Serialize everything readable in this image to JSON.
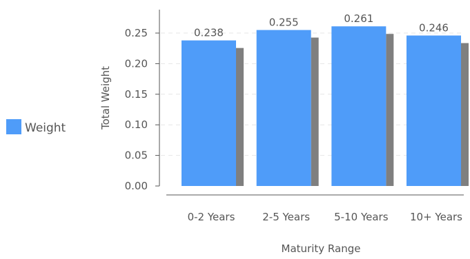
{
  "chart_data": {
    "type": "bar",
    "categories": [
      "0-2 Years",
      "2-5 Years",
      "5-10 Years",
      "10+ Years"
    ],
    "series": [
      {
        "name": "Weight",
        "values": [
          0.238,
          0.255,
          0.261,
          0.246
        ]
      }
    ],
    "data_labels": [
      "0.238",
      "0.255",
      "0.261",
      "0.246"
    ],
    "xlabel": "Maturity Range",
    "ylabel": "Total Weight",
    "ylim": [
      0,
      0.25
    ],
    "yticks": [
      "0.00",
      "0.05",
      "0.10",
      "0.15",
      "0.20",
      "0.25"
    ],
    "grid": true,
    "legend_position": "left",
    "colors": {
      "bar": "#4f9cf9",
      "shadow": "#7f7f7f",
      "axis": "#555555",
      "grid": "#e6e6e6"
    }
  }
}
